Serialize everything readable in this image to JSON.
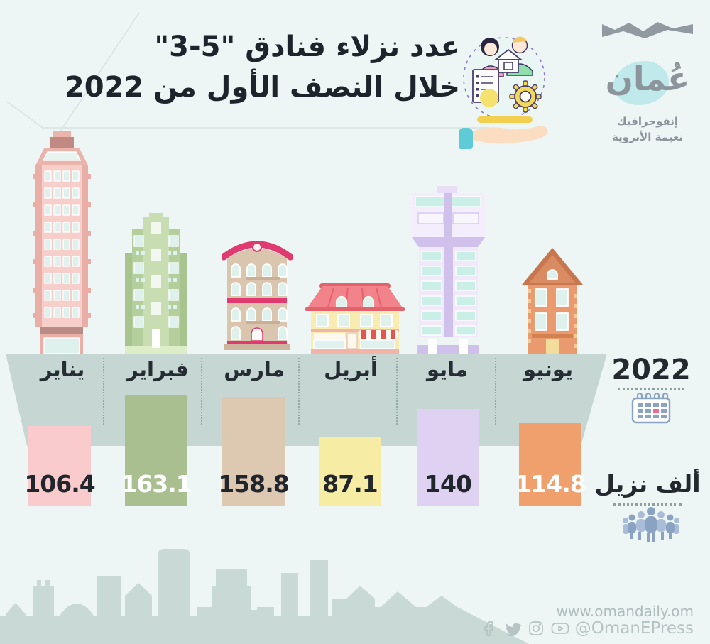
{
  "page": {
    "background": "#edf6f5"
  },
  "logo": {
    "brand": "عُمان",
    "subtitle1": "إنفوجرافيك",
    "subtitle2": "نعيمة الأبروية"
  },
  "header": {
    "title_line1": "عدد نزلاء فنادق \"5-3\"",
    "title_line2": "خلال النصف الأول من 2022"
  },
  "chart_data": {
    "type": "bar",
    "title": "عدد نزلاء فنادق \"5-3\" خلال النصف الأول من 2022",
    "categories": [
      "يناير",
      "فبراير",
      "مارس",
      "أبريل",
      "مايو",
      "يونيو"
    ],
    "values": [
      106.4,
      163.1,
      158.8,
      87.1,
      140,
      114.8
    ],
    "year_label": "2022",
    "unit_label": "ألف نزيل",
    "bar_colors": [
      "#f9cbcc",
      "#a9bf90",
      "#ddc8b2",
      "#f7eca4",
      "#ded1f2",
      "#efa06c"
    ],
    "value_text_colors": [
      "#20262c",
      "#ffffff",
      "#20262c",
      "#20262c",
      "#20262c",
      "#ffffff"
    ],
    "xlabel": "",
    "ylabel": "ألف نزيل",
    "grid": false,
    "legend_position": "none"
  },
  "footer": {
    "website": "www.omandaily.om",
    "social_handle": "@OmanEPress"
  },
  "icons": {
    "hand": "hand-presenting-icon",
    "calendar": "calendar-icon",
    "guests": "people-group-icon",
    "social": [
      "facebook-icon",
      "twitter-icon",
      "instagram-icon",
      "youtube-icon"
    ]
  },
  "colors": {
    "background": "#edf6f5",
    "banner": "#c6d7d3",
    "skyline": "#c9d9d5",
    "title_text": "#1e242b",
    "dotted_line": "#8fa19e",
    "footer_text": "#aebcbc"
  }
}
